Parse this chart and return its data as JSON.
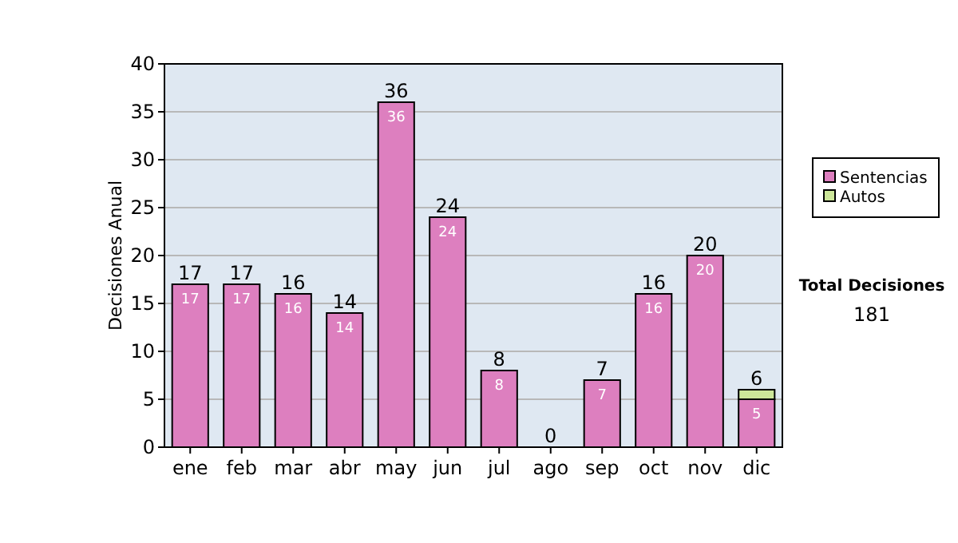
{
  "chart_data": {
    "type": "bar",
    "stacked": true,
    "ylabel": "Decisiones Anual",
    "categories": [
      "ene",
      "feb",
      "mar",
      "abr",
      "may",
      "jun",
      "jul",
      "ago",
      "sep",
      "oct",
      "nov",
      "dic"
    ],
    "series": [
      {
        "name": "Sentencias",
        "color": "#dd7fbf",
        "values": [
          17,
          17,
          16,
          14,
          36,
          24,
          8,
          0,
          7,
          16,
          20,
          5
        ],
        "value_labels": [
          "17",
          "17",
          "16",
          "14",
          "36",
          "24",
          "8",
          null,
          "7",
          "16",
          "20",
          "5"
        ]
      },
      {
        "name": "Autos",
        "color": "#cce699",
        "values": [
          0,
          0,
          0,
          0,
          0,
          0,
          0,
          0,
          0,
          0,
          0,
          1
        ]
      }
    ],
    "totals": [
      "17",
      "17",
      "16",
      "14",
      "36",
      "24",
      "8",
      "0",
      "7",
      "16",
      "20",
      "6"
    ],
    "ylim": [
      0,
      40
    ],
    "yticks": [
      0,
      5,
      10,
      15,
      20,
      25,
      30,
      35,
      40
    ],
    "grid": "y",
    "legend": "right",
    "annotations": [
      "Total Decisiones",
      "181"
    ]
  }
}
